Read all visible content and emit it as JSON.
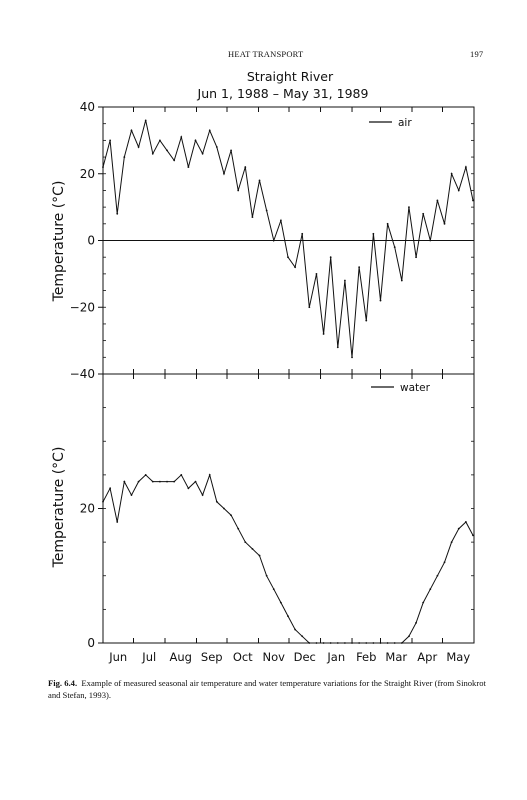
{
  "page": {
    "running_head": "HEAT TRANSPORT",
    "page_number": "197"
  },
  "caption": {
    "label": "Fig. 6.4.",
    "text": "Example of measured seasonal air temperature and water temperature variations for the Straight River (from Sinokrot and Stefan, 1993)."
  },
  "chart_data": [
    {
      "type": "line",
      "title": "Straight River",
      "subtitle": "Jun 1, 1988 – May 31, 1989",
      "ylabel": "Temperature (°C)",
      "xlabel": "",
      "ylim": [
        -40,
        40
      ],
      "yticks": [
        40,
        20,
        0,
        -20,
        -40
      ],
      "reference_line": 0,
      "legend": "top-right",
      "series": [
        {
          "name": "air",
          "x": [
            "1988-06-01",
            "1988-06-08",
            "1988-06-15",
            "1988-06-22",
            "1988-06-29",
            "1988-07-06",
            "1988-07-13",
            "1988-07-20",
            "1988-07-27",
            "1988-08-03",
            "1988-08-10",
            "1988-08-17",
            "1988-08-24",
            "1988-08-31",
            "1988-09-07",
            "1988-09-14",
            "1988-09-21",
            "1988-09-28",
            "1988-10-05",
            "1988-10-12",
            "1988-10-19",
            "1988-10-26",
            "1988-11-02",
            "1988-11-09",
            "1988-11-16",
            "1988-11-23",
            "1988-11-30",
            "1988-12-07",
            "1988-12-14",
            "1988-12-21",
            "1988-12-28",
            "1989-01-04",
            "1989-01-11",
            "1989-01-18",
            "1989-01-25",
            "1989-02-01",
            "1989-02-08",
            "1989-02-15",
            "1989-02-22",
            "1989-03-01",
            "1989-03-08",
            "1989-03-15",
            "1989-03-22",
            "1989-03-29",
            "1989-04-05",
            "1989-04-12",
            "1989-04-19",
            "1989-04-26",
            "1989-05-03",
            "1989-05-10",
            "1989-05-17",
            "1989-05-24",
            "1989-05-31"
          ],
          "y": [
            22,
            30,
            8,
            25,
            33,
            28,
            36,
            26,
            30,
            27,
            24,
            31,
            22,
            30,
            26,
            33,
            28,
            20,
            27,
            15,
            22,
            7,
            18,
            9,
            0,
            6,
            -5,
            -8,
            2,
            -20,
            -10,
            -28,
            -5,
            -32,
            -12,
            -35,
            -8,
            -24,
            2,
            -18,
            5,
            -2,
            -12,
            10,
            -5,
            8,
            0,
            12,
            5,
            20,
            15,
            22,
            12
          ]
        }
      ]
    },
    {
      "type": "line",
      "ylabel": "Temperature (°C)",
      "xlabel": "",
      "ylim": [
        0,
        40
      ],
      "yticks": [
        20,
        0
      ],
      "legend": "top-right",
      "categories": [
        "Jun",
        "Jul",
        "Aug",
        "Sep",
        "Oct",
        "Nov",
        "Dec",
        "Jan",
        "Feb",
        "Mar",
        "Apr",
        "May"
      ],
      "series": [
        {
          "name": "water",
          "x": [
            "1988-06-01",
            "1988-06-08",
            "1988-06-15",
            "1988-06-22",
            "1988-06-29",
            "1988-07-06",
            "1988-07-13",
            "1988-07-20",
            "1988-07-27",
            "1988-08-03",
            "1988-08-10",
            "1988-08-17",
            "1988-08-24",
            "1988-08-31",
            "1988-09-07",
            "1988-09-14",
            "1988-09-21",
            "1988-09-28",
            "1988-10-05",
            "1988-10-12",
            "1988-10-19",
            "1988-10-26",
            "1988-11-02",
            "1988-11-09",
            "1988-11-16",
            "1988-11-23",
            "1988-11-30",
            "1988-12-07",
            "1988-12-14",
            "1988-12-21",
            "1988-12-28",
            "1989-01-04",
            "1989-01-11",
            "1989-01-18",
            "1989-01-25",
            "1989-02-01",
            "1989-02-08",
            "1989-02-15",
            "1989-02-22",
            "1989-03-01",
            "1989-03-08",
            "1989-03-15",
            "1989-03-22",
            "1989-03-29",
            "1989-04-05",
            "1989-04-12",
            "1989-04-19",
            "1989-04-26",
            "1989-05-03",
            "1989-05-10",
            "1989-05-17",
            "1989-05-24",
            "1989-05-31"
          ],
          "y": [
            21,
            23,
            18,
            24,
            22,
            24,
            25,
            24,
            24,
            24,
            24,
            25,
            23,
            24,
            22,
            25,
            21,
            20,
            19,
            17,
            15,
            14,
            13,
            10,
            8,
            6,
            4,
            2,
            1,
            0,
            0,
            0,
            0,
            0,
            0,
            0,
            0,
            0,
            0,
            0,
            0,
            0,
            0,
            1,
            3,
            6,
            8,
            10,
            12,
            15,
            17,
            18,
            16
          ]
        }
      ]
    }
  ]
}
